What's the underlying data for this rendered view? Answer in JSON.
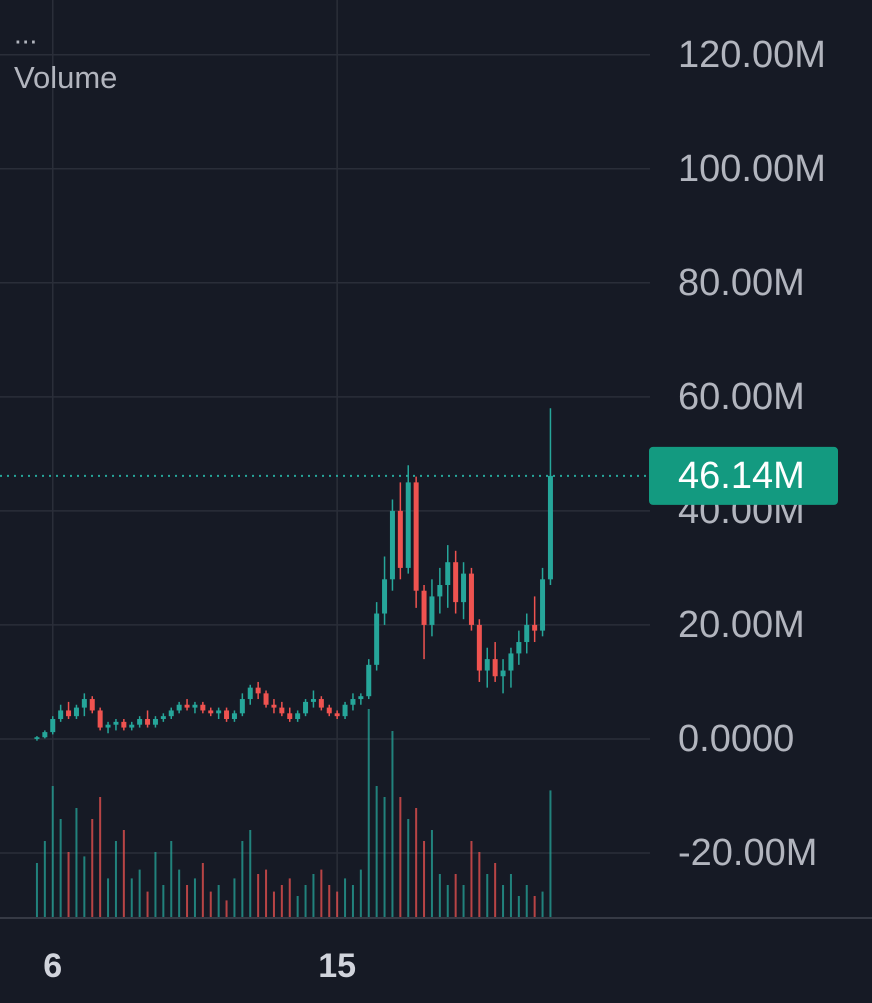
{
  "chart_data": {
    "type": "candlestick",
    "menu": "...",
    "title": "Volume",
    "categories": [
      null,
      null,
      "6",
      null,
      null,
      null,
      null,
      null,
      null,
      null,
      null,
      null,
      null,
      null,
      null,
      null,
      null,
      null,
      null,
      null,
      null,
      null,
      null,
      null,
      null,
      null,
      null,
      null,
      null,
      null,
      null,
      null,
      null,
      null,
      null,
      null,
      null,
      null,
      "15",
      null,
      null,
      null,
      null,
      null,
      null,
      null,
      null,
      null,
      null,
      null,
      null,
      null,
      null,
      null,
      null,
      null,
      null,
      null,
      null,
      null,
      null,
      null,
      null,
      null,
      null,
      null
    ],
    "open": [
      0,
      0.3,
      1.2,
      3.5,
      5,
      4,
      5.5,
      7,
      5,
      2,
      2.5,
      3,
      2,
      2.5,
      3.5,
      2.5,
      3.5,
      4,
      5,
      6,
      5.5,
      6,
      5,
      4.5,
      5,
      3.5,
      4.5,
      7,
      9,
      8,
      6,
      5.5,
      4.5,
      3.5,
      4.5,
      6.5,
      7,
      5.5,
      4.5,
      4,
      6,
      7,
      7.5,
      13,
      22,
      28,
      40,
      30,
      45,
      26,
      20,
      25,
      27,
      31,
      24,
      29,
      20,
      12,
      14,
      11,
      12,
      15,
      17,
      20,
      19,
      28
    ],
    "high": [
      0.5,
      1.5,
      4,
      6,
      6.5,
      6,
      8,
      7.5,
      5.5,
      3,
      3.5,
      3.5,
      3,
      4,
      5,
      4,
      4.5,
      5.5,
      6.5,
      7,
      6.5,
      6.5,
      5.5,
      5.5,
      5.5,
      5,
      8,
      9.5,
      10,
      8.5,
      7,
      6.5,
      5.5,
      5,
      7,
      8.5,
      7.5,
      6,
      5,
      6.5,
      8,
      8,
      14,
      24,
      32,
      42,
      45,
      48,
      46,
      27,
      28,
      30,
      34,
      33,
      31,
      30,
      21,
      16,
      17,
      14,
      16,
      19,
      22,
      25,
      30,
      58
    ],
    "low": [
      -0.3,
      0.1,
      0.8,
      3,
      3.5,
      3.5,
      4,
      4.5,
      1.5,
      1,
      1.5,
      1.5,
      1.5,
      2,
      2,
      2,
      3,
      3.5,
      4.5,
      5,
      4.5,
      4.5,
      4,
      3.5,
      3,
      3,
      4,
      6,
      7,
      5.5,
      4.5,
      4,
      3,
      3,
      4,
      5.5,
      5,
      4,
      3.5,
      3.5,
      5,
      6,
      7,
      12,
      20,
      26,
      28,
      29,
      23,
      14,
      18,
      22,
      23,
      22,
      21,
      19,
      10,
      9,
      10,
      8,
      9,
      13,
      15,
      17,
      18,
      27
    ],
    "close": [
      0.3,
      1.2,
      3.5,
      5,
      4,
      5.5,
      7,
      5,
      2,
      2.5,
      3,
      2,
      2.5,
      3.5,
      2.5,
      3.5,
      4,
      5,
      6,
      5.5,
      6,
      5,
      4.5,
      5,
      3.5,
      4.5,
      7,
      9,
      8,
      6,
      5.5,
      4.5,
      3.5,
      4.5,
      6.5,
      7,
      5.5,
      4.5,
      4,
      6,
      7,
      7.5,
      13,
      22,
      28,
      40,
      30,
      45,
      26,
      20,
      25,
      27,
      31,
      24,
      29,
      20,
      12,
      14,
      11,
      12,
      15,
      17,
      20,
      19,
      28,
      46.14
    ],
    "volume": [
      25,
      35,
      60,
      45,
      30,
      50,
      28,
      45,
      55,
      18,
      35,
      40,
      18,
      22,
      12,
      30,
      15,
      35,
      22,
      15,
      18,
      25,
      12,
      15,
      8,
      18,
      35,
      40,
      20,
      22,
      12,
      15,
      18,
      10,
      15,
      20,
      22,
      15,
      12,
      18,
      15,
      22,
      95,
      60,
      55,
      85,
      55,
      45,
      50,
      35,
      40,
      20,
      15,
      20,
      15,
      35,
      30,
      20,
      25,
      15,
      20,
      10,
      15,
      10,
      12,
      58
    ],
    "vlim": [
      0,
      100
    ],
    "up_color": "#26a69a",
    "down_color": "#ef5350",
    "last_price": {
      "value": 46.14,
      "label": "46.14M"
    },
    "ylim": [
      -31.4,
      129.6
    ],
    "yticks": [
      {
        "value": 120,
        "label": "120.00M"
      },
      {
        "value": 100,
        "label": "100.00M"
      },
      {
        "value": 80,
        "label": "80.00M"
      },
      {
        "value": 60,
        "label": "60.00M"
      },
      {
        "value": 40,
        "label": "40.00M"
      },
      {
        "value": 20,
        "label": "20.00M"
      },
      {
        "value": 0,
        "label": "0.0000"
      },
      {
        "value": -20,
        "label": "-20.00M"
      }
    ],
    "grid": true
  }
}
